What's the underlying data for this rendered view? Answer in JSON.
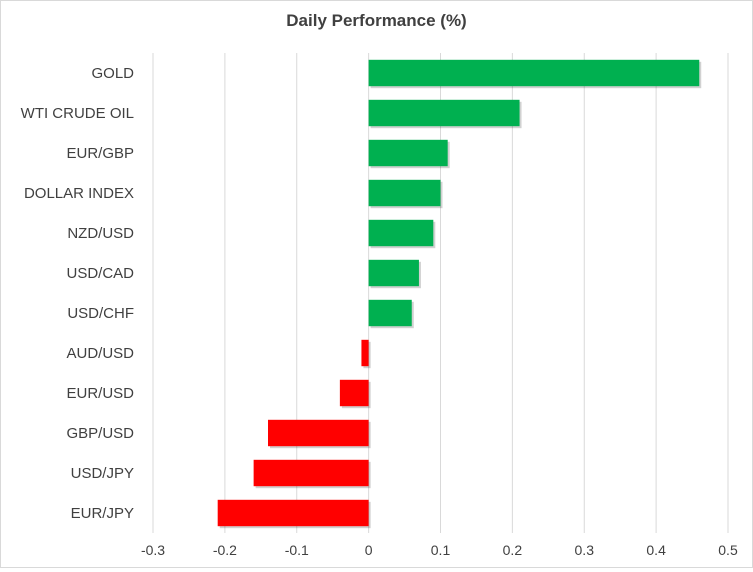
{
  "chart_data": {
    "type": "bar",
    "orientation": "horizontal",
    "title": "Daily Performance (%)",
    "xlabel": "",
    "ylabel": "",
    "categories": [
      "GOLD",
      "WTI CRUDE OIL",
      "EUR/GBP",
      "DOLLAR INDEX",
      "NZD/USD",
      "USD/CAD",
      "USD/CHF",
      "AUD/USD",
      "EUR/USD",
      "GBP/USD",
      "USD/JPY",
      "EUR/JPY"
    ],
    "values": [
      0.46,
      0.21,
      0.11,
      0.1,
      0.09,
      0.07,
      0.06,
      -0.01,
      -0.04,
      -0.14,
      -0.16,
      -0.21
    ],
    "xlim": [
      -0.3,
      0.5
    ],
    "x_ticks": [
      -0.3,
      -0.2,
      -0.1,
      0,
      0.1,
      0.2,
      0.3,
      0.4,
      0.5
    ],
    "x_tick_labels": [
      "-0.3",
      "-0.2",
      "-0.1",
      "0",
      "0.1",
      "0.2",
      "0.3",
      "0.4",
      "0.5"
    ],
    "grid": "vertical",
    "legend": "none",
    "colors": {
      "positive": "#00b050",
      "negative": "#ff0000",
      "grid": "#d9d9d9",
      "text": "#404040"
    }
  }
}
